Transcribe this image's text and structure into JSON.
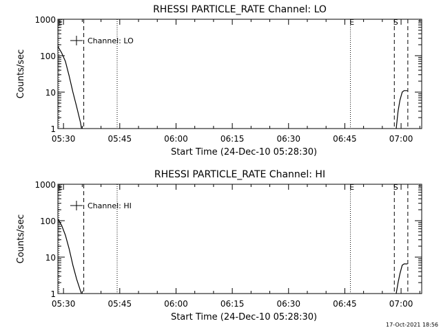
{
  "chart_data": [
    {
      "type": "line",
      "title": "RHESSI PARTICLE_RATE Channel: LO",
      "xlabel": "Start Time (24-Dec-10 05:28:30)",
      "ylabel": "Counts/sec",
      "yscale": "log",
      "ylim": [
        1,
        1000
      ],
      "xlim_minutes": [
        0,
        97
      ],
      "x_unit": "minutes after 05:28:30",
      "x_ticks": [
        {
          "value": 1.5,
          "label": "05:30"
        },
        {
          "value": 16.5,
          "label": "05:45"
        },
        {
          "value": 31.5,
          "label": "06:00"
        },
        {
          "value": 46.5,
          "label": "06:15"
        },
        {
          "value": 61.5,
          "label": "06:30"
        },
        {
          "value": 76.5,
          "label": "06:45"
        },
        {
          "value": 91.5,
          "label": "07:00"
        }
      ],
      "y_ticks": [
        {
          "value": 1,
          "label": "1"
        },
        {
          "value": 10,
          "label": "10"
        },
        {
          "value": 100,
          "label": "100"
        },
        {
          "value": 1000,
          "label": "1000"
        }
      ],
      "legend": "Channel: LO",
      "legend_position": "top-left",
      "markers": [
        {
          "label": "E",
          "x": 0.3,
          "style": "dotted"
        },
        {
          "label": "",
          "x": 6.9,
          "style": "dashed"
        },
        {
          "label": "",
          "x": 15.8,
          "style": "dotted"
        },
        {
          "label": "E",
          "x": 78.0,
          "style": "dotted"
        },
        {
          "label": "S",
          "x": 89.7,
          "style": "dashed"
        },
        {
          "label": "",
          "x": 93.3,
          "style": "dashed"
        }
      ],
      "series": [
        {
          "name": "Channel: LO",
          "segments": [
            {
              "x": [
                0,
                1,
                2,
                3,
                4,
                5,
                6,
                6.3
              ],
              "y": [
                180,
                120,
                70,
                28,
                10,
                4,
                1.5,
                1
              ]
            },
            {
              "x": [
                90.2,
                90.7,
                91.2,
                91.8,
                92.3,
                93.2
              ],
              "y": [
                1,
                3,
                6,
                10,
                11,
                11
              ]
            }
          ]
        }
      ]
    },
    {
      "type": "line",
      "title": "RHESSI PARTICLE_RATE Channel: HI",
      "xlabel": "Start Time (24-Dec-10 05:28:30)",
      "ylabel": "Counts/sec",
      "yscale": "log",
      "ylim": [
        1,
        1000
      ],
      "xlim_minutes": [
        0,
        97
      ],
      "x_unit": "minutes after 05:28:30",
      "x_ticks": [
        {
          "value": 1.5,
          "label": "05:30"
        },
        {
          "value": 16.5,
          "label": "05:45"
        },
        {
          "value": 31.5,
          "label": "06:00"
        },
        {
          "value": 46.5,
          "label": "06:15"
        },
        {
          "value": 61.5,
          "label": "06:30"
        },
        {
          "value": 76.5,
          "label": "06:45"
        },
        {
          "value": 91.5,
          "label": "07:00"
        }
      ],
      "y_ticks": [
        {
          "value": 1,
          "label": "1"
        },
        {
          "value": 10,
          "label": "10"
        },
        {
          "value": 100,
          "label": "100"
        },
        {
          "value": 1000,
          "label": "1000"
        }
      ],
      "legend": "Channel: HI",
      "legend_position": "top-left",
      "markers": [
        {
          "label": "E",
          "x": 0.3,
          "style": "dotted"
        },
        {
          "label": "",
          "x": 6.9,
          "style": "dashed"
        },
        {
          "label": "",
          "x": 15.8,
          "style": "dotted"
        },
        {
          "label": "E",
          "x": 78.0,
          "style": "dotted"
        },
        {
          "label": "S",
          "x": 89.7,
          "style": "dashed"
        },
        {
          "label": "",
          "x": 93.3,
          "style": "dashed"
        }
      ],
      "series": [
        {
          "name": "Channel: HI",
          "segments": [
            {
              "x": [
                0,
                1,
                2,
                3,
                4,
                5,
                6,
                6.3
              ],
              "y": [
                110,
                75,
                40,
                17,
                6,
                2.5,
                1.2,
                1
              ]
            },
            {
              "x": [
                90.2,
                90.7,
                91.2,
                91.8,
                92.3,
                93.2
              ],
              "y": [
                1,
                2,
                3.5,
                6,
                6.5,
                6.5
              ]
            }
          ]
        }
      ]
    }
  ],
  "footer": {
    "timestamp": "17-Oct-2021 18:56"
  }
}
